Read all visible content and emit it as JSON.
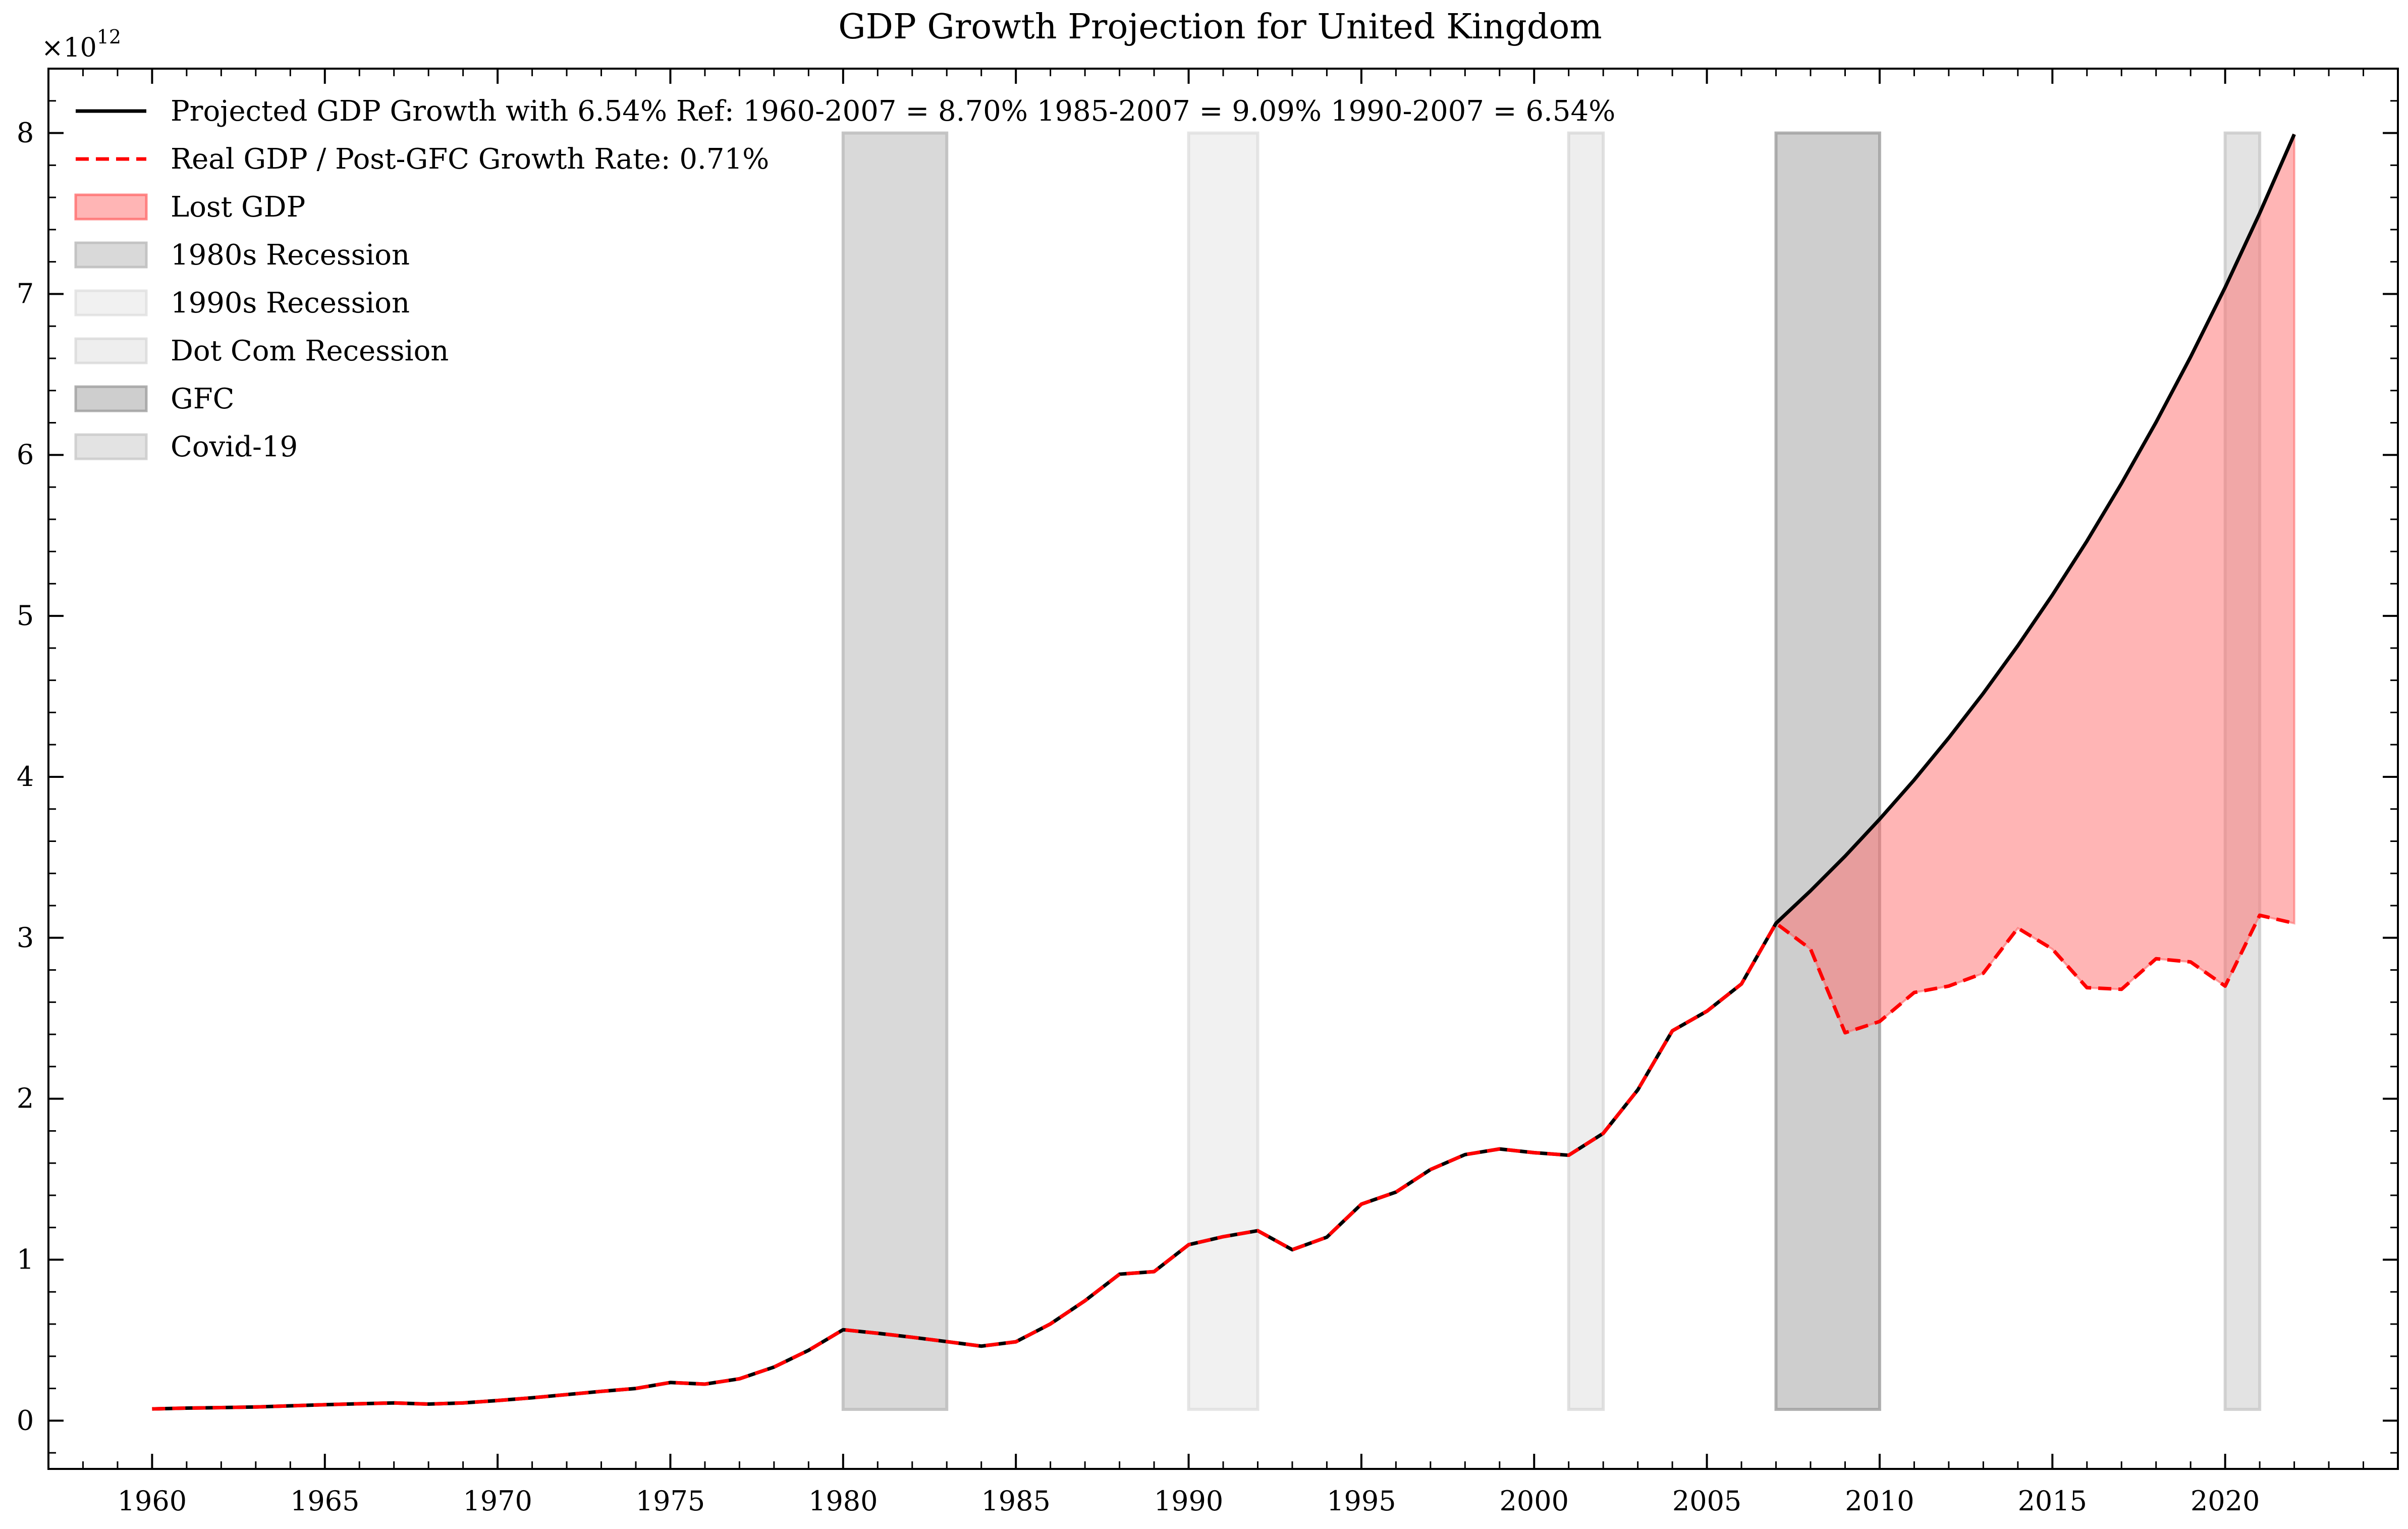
{
  "chart_data": {
    "type": "line",
    "title": "GDP Growth Projection for United Kingdom",
    "xlabel": "",
    "ylabel": "",
    "y_scale_label": "×10",
    "y_scale_exponent": "12",
    "xlim": [
      1957,
      2025
    ],
    "ylim": [
      -0.3,
      8.4
    ],
    "x_ticks": [
      1960,
      1965,
      1970,
      1975,
      1980,
      1985,
      1990,
      1995,
      2000,
      2005,
      2010,
      2015,
      2020
    ],
    "x_tick_labels": [
      "1960",
      "1965",
      "1970",
      "1975",
      "1980",
      "1985",
      "1990",
      "1995",
      "2000",
      "2005",
      "2010",
      "2015",
      "2020"
    ],
    "y_ticks": [
      0,
      1,
      2,
      3,
      4,
      5,
      6,
      7,
      8
    ],
    "y_tick_labels": [
      "0",
      "1",
      "2",
      "3",
      "4",
      "5",
      "6",
      "7",
      "8"
    ],
    "grid": false,
    "legend_position": "upper-left",
    "colors": {
      "projected": "#000000",
      "real": "#ff0000",
      "lost_fill": "#ff6b6b",
      "axis": "#000000"
    },
    "series": [
      {
        "name": "Projected GDP Growth with 6.54% Ref: 1960-2007 = 8.70% 1985-2007 = 9.09% 1990-2007 = 6.54%",
        "style": "solid",
        "x": [
          1960,
          1961,
          1962,
          1963,
          1964,
          1965,
          1966,
          1967,
          1968,
          1969,
          1970,
          1971,
          1972,
          1973,
          1974,
          1975,
          1976,
          1977,
          1978,
          1979,
          1980,
          1981,
          1982,
          1983,
          1984,
          1985,
          1986,
          1987,
          1988,
          1989,
          1990,
          1991,
          1992,
          1993,
          1994,
          1995,
          1996,
          1997,
          1998,
          1999,
          2000,
          2001,
          2002,
          2003,
          2004,
          2005,
          2006,
          2007,
          2008,
          2009,
          2010,
          2011,
          2012,
          2013,
          2014,
          2015,
          2016,
          2017,
          2018,
          2019,
          2020,
          2021,
          2022
        ],
        "values": [
          0.073,
          0.078,
          0.081,
          0.085,
          0.092,
          0.099,
          0.105,
          0.11,
          0.103,
          0.11,
          0.125,
          0.142,
          0.162,
          0.182,
          0.2,
          0.237,
          0.227,
          0.26,
          0.333,
          0.437,
          0.565,
          0.543,
          0.518,
          0.491,
          0.463,
          0.49,
          0.601,
          0.745,
          0.91,
          0.926,
          1.093,
          1.143,
          1.18,
          1.062,
          1.14,
          1.345,
          1.42,
          1.56,
          1.653,
          1.688,
          1.665,
          1.649,
          1.785,
          2.055,
          2.422,
          2.544,
          2.713,
          3.09,
          3.292,
          3.507,
          3.737,
          3.981,
          4.242,
          4.519,
          4.815,
          5.13,
          5.465,
          5.823,
          6.203,
          6.609,
          7.041,
          7.502,
          7.992
        ]
      },
      {
        "name": "Real GDP / Post-GFC Growth Rate: 0.71%",
        "style": "dashed",
        "x": [
          1960,
          1961,
          1962,
          1963,
          1964,
          1965,
          1966,
          1967,
          1968,
          1969,
          1970,
          1971,
          1972,
          1973,
          1974,
          1975,
          1976,
          1977,
          1978,
          1979,
          1980,
          1981,
          1982,
          1983,
          1984,
          1985,
          1986,
          1987,
          1988,
          1989,
          1990,
          1991,
          1992,
          1993,
          1994,
          1995,
          1996,
          1997,
          1998,
          1999,
          2000,
          2001,
          2002,
          2003,
          2004,
          2005,
          2006,
          2007,
          2008,
          2009,
          2010,
          2011,
          2012,
          2013,
          2014,
          2015,
          2016,
          2017,
          2018,
          2019,
          2020,
          2021,
          2022
        ],
        "values": [
          0.073,
          0.078,
          0.081,
          0.085,
          0.092,
          0.099,
          0.105,
          0.11,
          0.103,
          0.11,
          0.125,
          0.142,
          0.162,
          0.182,
          0.2,
          0.237,
          0.227,
          0.26,
          0.333,
          0.437,
          0.565,
          0.543,
          0.518,
          0.491,
          0.463,
          0.49,
          0.601,
          0.745,
          0.91,
          0.926,
          1.093,
          1.143,
          1.18,
          1.062,
          1.14,
          1.345,
          1.42,
          1.56,
          1.653,
          1.688,
          1.665,
          1.649,
          1.785,
          2.055,
          2.422,
          2.544,
          2.713,
          3.09,
          2.93,
          2.41,
          2.48,
          2.66,
          2.7,
          2.78,
          3.06,
          2.93,
          2.69,
          2.68,
          2.87,
          2.85,
          2.7,
          3.14,
          3.09
        ]
      }
    ],
    "fill_between": {
      "name": "Lost GDP",
      "from_year": 2007,
      "to_year": 2022
    },
    "recessions": [
      {
        "name": "1980s Recession",
        "start": 1980,
        "end": 1983,
        "color": "#bfbfbf",
        "opacity": 0.6
      },
      {
        "name": "1990s Recession",
        "start": 1990,
        "end": 1992,
        "color": "#dcdcdc",
        "opacity": 0.4
      },
      {
        "name": "Dot Com Recession",
        "start": 2001,
        "end": 2002,
        "color": "#d4d4d4",
        "opacity": 0.4
      },
      {
        "name": "GFC",
        "start": 2007,
        "end": 2010,
        "color": "#9e9e9e",
        "opacity": 0.5
      },
      {
        "name": "Covid-19",
        "start": 2020,
        "end": 2021,
        "color": "#c8c8c8",
        "opacity": 0.5
      }
    ],
    "recession_band_range": [
      0.07,
      8.0
    ],
    "legend": [
      {
        "label": "Projected GDP Growth with 6.54% Ref: 1960-2007 = 8.70% 1985-2007 = 9.09% 1990-2007 = 6.54%",
        "kind": "line-solid",
        "color": "#000000"
      },
      {
        "label": "Real GDP / Post-GFC Growth Rate: 0.71%",
        "kind": "line-dashed",
        "color": "#ff0000"
      },
      {
        "label": "Lost GDP",
        "kind": "patch",
        "color": "#ff6b6b",
        "opacity": 0.5
      },
      {
        "label": "1980s Recession",
        "kind": "patch",
        "color": "#bfbfbf",
        "opacity": 0.6
      },
      {
        "label": "1990s Recession",
        "kind": "patch",
        "color": "#dcdcdc",
        "opacity": 0.4
      },
      {
        "label": "Dot Com Recession",
        "kind": "patch",
        "color": "#d4d4d4",
        "opacity": 0.4
      },
      {
        "label": "GFC",
        "kind": "patch",
        "color": "#9e9e9e",
        "opacity": 0.5
      },
      {
        "label": "Covid-19",
        "kind": "patch",
        "color": "#c8c8c8",
        "opacity": 0.5
      }
    ]
  }
}
